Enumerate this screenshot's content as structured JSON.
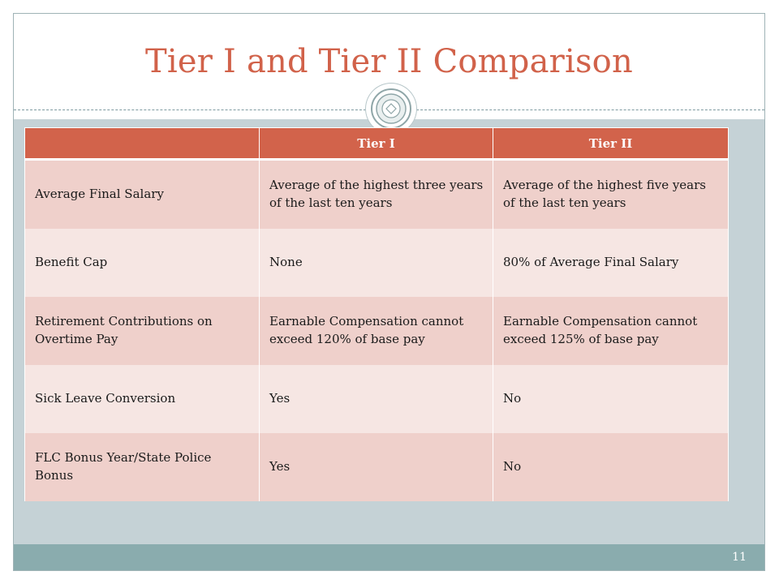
{
  "slide": {
    "title": "Tier I and Tier II Comparison",
    "page_number": "11"
  },
  "table": {
    "headers": [
      "",
      "Tier I",
      "Tier II"
    ],
    "rows": [
      {
        "label": "Average Final Salary",
        "tier1": "Average of the highest three years of the last ten years",
        "tier2": "Average of the highest five years of the last ten years"
      },
      {
        "label": "Benefit Cap",
        "tier1": "None",
        "tier2": "80% of Average Final Salary"
      },
      {
        "label": "Retirement Contributions on Overtime Pay",
        "tier1": "Earnable Compensation cannot exceed 120% of base pay",
        "tier2": "Earnable Compensation cannot exceed 125% of base pay"
      },
      {
        "label": "Sick Leave Conversion",
        "tier1": "Yes",
        "tier2": "No"
      },
      {
        "label": "FLC Bonus Year/State Police Bonus",
        "tier1": "Yes",
        "tier2": "No"
      }
    ]
  },
  "colors": {
    "title": "#d1624a",
    "header_bg": "#d2634b",
    "row_odd": "#efd0cb",
    "row_even": "#f6e6e3",
    "content_bg": "#c5d2d6",
    "footer_bar": "#8aacae"
  },
  "icons": {
    "seal": "organization-seal-icon"
  }
}
